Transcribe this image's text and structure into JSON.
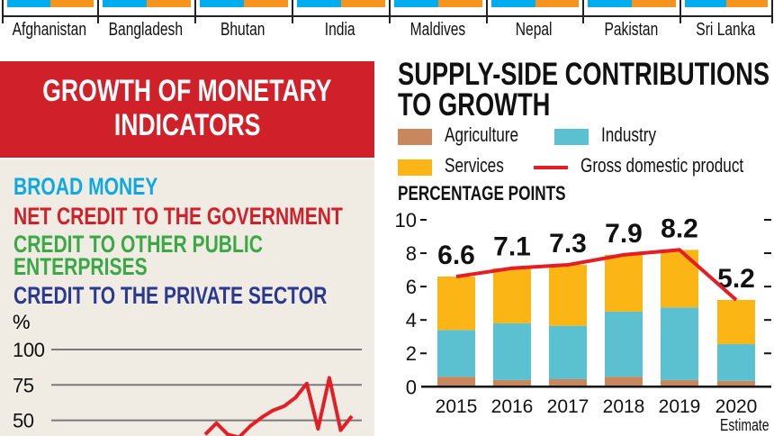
{
  "top_strip": {
    "countries": [
      "Afghanistan",
      "Bangladesh",
      "Bhutan",
      "India",
      "Maldives",
      "Nepal",
      "Pakistan",
      "Sri Lanka"
    ],
    "colors": {
      "left": "#00aeef",
      "right": "#f7941d"
    }
  },
  "left_panel": {
    "title_line1": "GROWTH OF MONETARY",
    "title_line2": "INDICATORS",
    "legend": [
      {
        "label": "BROAD MONEY",
        "color": "#0fa8e0"
      },
      {
        "label": "NET CREDIT TO THE GOVERNMENT",
        "color": "#d0202a"
      },
      {
        "label": "CREDIT TO OTHER PUBLIC",
        "color": "#3aa845"
      },
      {
        "label": "ENTERPRISES",
        "color": "#3aa845"
      },
      {
        "label": "CREDIT TO THE PRIVATE SECTOR",
        "color": "#2b3990"
      }
    ]
  },
  "right_panel": {
    "title_line1": "SUPPLY-SIDE CONTRIBUTIONS",
    "title_line2": "TO GROWTH",
    "unit_label": "PERCENTAGE POINTS",
    "note": "Estimate"
  },
  "chart_data": [
    {
      "type": "line",
      "ylabel": "%",
      "yticks": [
        "100",
        "75",
        "50"
      ],
      "grid": true,
      "series": [
        {
          "name": "NET CREDIT TO THE GOVERNMENT",
          "color": "#e41e26",
          "values": [
            40,
            48,
            40,
            38,
            46,
            52,
            57,
            60,
            66,
            76,
            44,
            80,
            43,
            53
          ]
        }
      ]
    },
    {
      "type": "bar",
      "stacked": true,
      "categories": [
        "2015",
        "2016",
        "2017",
        "2018",
        "2019",
        "2020"
      ],
      "ylim": [
        0,
        10
      ],
      "yticks": [
        "0",
        "2",
        "4",
        "6",
        "8",
        "10"
      ],
      "series": [
        {
          "name": "Agriculture",
          "color": "#c8875c",
          "values": [
            0.6,
            0.4,
            0.45,
            0.6,
            0.4,
            0.35
          ]
        },
        {
          "name": "Industry",
          "color": "#5bc0cf",
          "values": [
            2.8,
            3.4,
            3.2,
            3.9,
            4.35,
            2.2
          ]
        },
        {
          "name": "Services",
          "color": "#fbb515",
          "values": [
            3.2,
            3.3,
            3.65,
            3.4,
            3.45,
            2.65
          ]
        }
      ],
      "line": {
        "name": "Gross domestic product",
        "color": "#e41e26",
        "values": [
          6.6,
          7.1,
          7.3,
          7.9,
          8.2,
          5.2
        ],
        "labels": [
          "6.6",
          "7.1",
          "7.3",
          "7.9",
          "8.2",
          "5.2"
        ]
      },
      "legend_position": "top"
    }
  ]
}
